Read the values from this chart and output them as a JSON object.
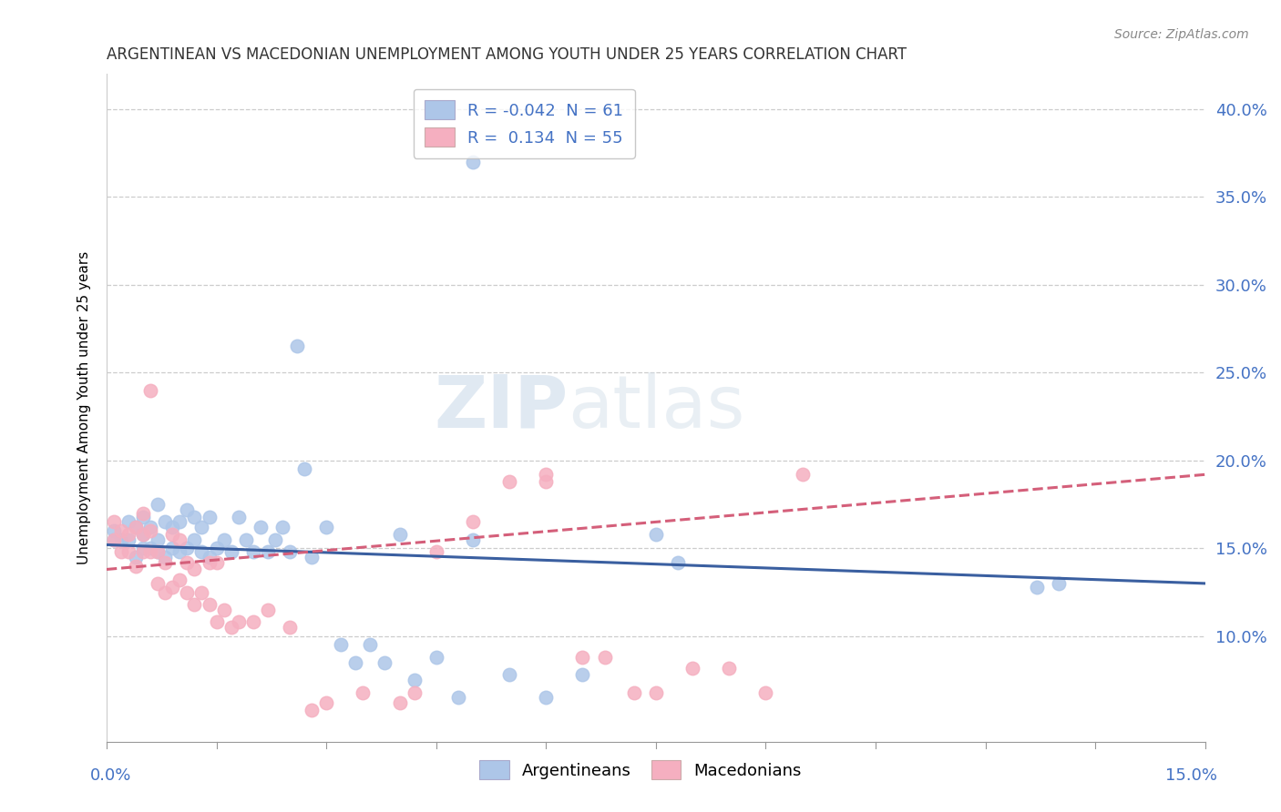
{
  "title": "ARGENTINEAN VS MACEDONIAN UNEMPLOYMENT AMONG YOUTH UNDER 25 YEARS CORRELATION CHART",
  "source": "Source: ZipAtlas.com",
  "xlim": [
    0.0,
    0.15
  ],
  "ylim": [
    0.04,
    0.42
  ],
  "ylabel_ticks": [
    0.1,
    0.15,
    0.2,
    0.25,
    0.3,
    0.35,
    0.4
  ],
  "ylabel_labels": [
    "10.0%",
    "15.0%",
    "20.0%",
    "25.0%",
    "30.0%",
    "35.0%",
    "40.0%"
  ],
  "R_blue": -0.042,
  "N_blue": 61,
  "R_pink": 0.134,
  "N_pink": 55,
  "blue_color": "#adc6e8",
  "pink_color": "#f5afc0",
  "blue_line_color": "#3a5fa0",
  "pink_line_color": "#d45f7a",
  "watermark_zip": "ZIP",
  "watermark_atlas": "atlas",
  "legend_label_blue": "Argentineans",
  "legend_label_pink": "Macedonians",
  "blue_scatter_x": [
    0.001,
    0.001,
    0.002,
    0.003,
    0.003,
    0.004,
    0.004,
    0.005,
    0.005,
    0.005,
    0.006,
    0.006,
    0.007,
    0.007,
    0.007,
    0.008,
    0.008,
    0.009,
    0.009,
    0.01,
    0.01,
    0.011,
    0.011,
    0.012,
    0.012,
    0.013,
    0.013,
    0.014,
    0.014,
    0.015,
    0.016,
    0.017,
    0.018,
    0.019,
    0.02,
    0.021,
    0.022,
    0.023,
    0.024,
    0.025,
    0.026,
    0.027,
    0.028,
    0.03,
    0.032,
    0.034,
    0.036,
    0.038,
    0.04,
    0.042,
    0.045,
    0.048,
    0.05,
    0.055,
    0.06,
    0.065,
    0.075,
    0.078,
    0.127,
    0.13,
    0.05
  ],
  "blue_scatter_y": [
    0.155,
    0.16,
    0.155,
    0.155,
    0.165,
    0.145,
    0.162,
    0.15,
    0.158,
    0.168,
    0.15,
    0.162,
    0.148,
    0.155,
    0.175,
    0.145,
    0.165,
    0.15,
    0.162,
    0.148,
    0.165,
    0.15,
    0.172,
    0.155,
    0.168,
    0.148,
    0.162,
    0.145,
    0.168,
    0.15,
    0.155,
    0.148,
    0.168,
    0.155,
    0.148,
    0.162,
    0.148,
    0.155,
    0.162,
    0.148,
    0.265,
    0.195,
    0.145,
    0.162,
    0.095,
    0.085,
    0.095,
    0.085,
    0.158,
    0.075,
    0.088,
    0.065,
    0.155,
    0.078,
    0.065,
    0.078,
    0.158,
    0.142,
    0.128,
    0.13,
    0.37
  ],
  "pink_scatter_x": [
    0.001,
    0.001,
    0.002,
    0.002,
    0.003,
    0.003,
    0.004,
    0.004,
    0.005,
    0.005,
    0.005,
    0.006,
    0.006,
    0.006,
    0.007,
    0.007,
    0.008,
    0.008,
    0.009,
    0.009,
    0.01,
    0.01,
    0.011,
    0.011,
    0.012,
    0.012,
    0.013,
    0.014,
    0.014,
    0.015,
    0.015,
    0.016,
    0.017,
    0.018,
    0.02,
    0.022,
    0.025,
    0.028,
    0.03,
    0.035,
    0.04,
    0.042,
    0.045,
    0.05,
    0.055,
    0.06,
    0.065,
    0.068,
    0.072,
    0.075,
    0.08,
    0.085,
    0.09,
    0.095,
    0.06
  ],
  "pink_scatter_y": [
    0.155,
    0.165,
    0.148,
    0.16,
    0.148,
    0.158,
    0.14,
    0.162,
    0.148,
    0.158,
    0.17,
    0.148,
    0.16,
    0.24,
    0.13,
    0.148,
    0.125,
    0.142,
    0.128,
    0.158,
    0.132,
    0.155,
    0.125,
    0.142,
    0.118,
    0.138,
    0.125,
    0.118,
    0.142,
    0.108,
    0.142,
    0.115,
    0.105,
    0.108,
    0.108,
    0.115,
    0.105,
    0.058,
    0.062,
    0.068,
    0.062,
    0.068,
    0.148,
    0.165,
    0.188,
    0.192,
    0.088,
    0.088,
    0.068,
    0.068,
    0.082,
    0.082,
    0.068,
    0.192,
    0.188
  ],
  "blue_trend_x": [
    0.0,
    0.15
  ],
  "blue_trend_y": [
    0.152,
    0.13
  ],
  "pink_trend_x": [
    0.0,
    0.15
  ],
  "pink_trend_y": [
    0.138,
    0.192
  ]
}
